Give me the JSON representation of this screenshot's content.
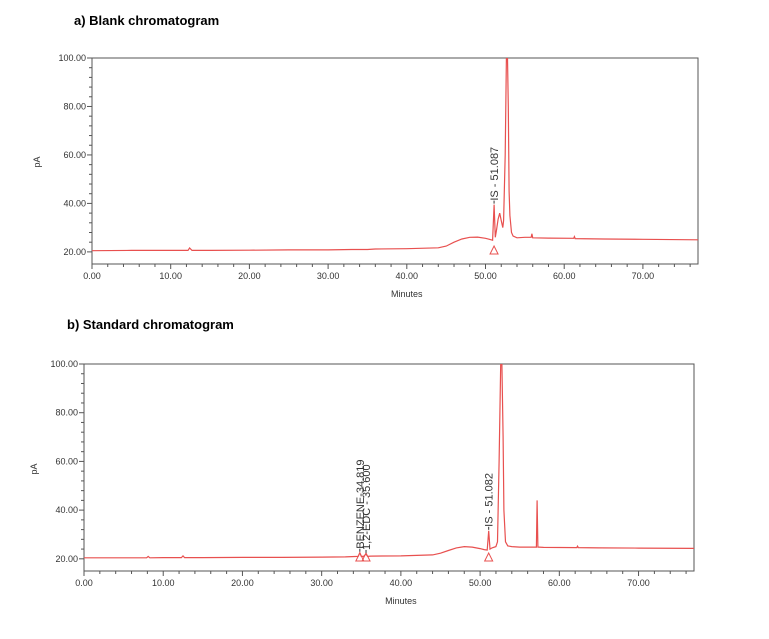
{
  "chart_data": [
    {
      "type": "line",
      "panel_title": "a) Blank chromatogram",
      "xlabel": "Minutes",
      "ylabel": "pA",
      "xlim": [
        0,
        77
      ],
      "ylim": [
        15,
        100
      ],
      "x_ticks": [
        "0.00",
        "10.00",
        "20.00",
        "30.00",
        "40.00",
        "50.00",
        "60.00",
        "70.00"
      ],
      "y_ticks": [
        "20.00",
        "40.00",
        "60.00",
        "80.00",
        "100.00"
      ],
      "color": "#e8504f",
      "series": [
        {
          "x": [
            0,
            5,
            10,
            12.2,
            12.4,
            12.7,
            15,
            20,
            25,
            30,
            33,
            35,
            36,
            40,
            44,
            45,
            46,
            47,
            48,
            49,
            50,
            50.5,
            50.9,
            51.087,
            51.25,
            51.4,
            51.6,
            51.8,
            52,
            52.2,
            52.3,
            52.5,
            52.65,
            52.8,
            52.9,
            53.0,
            53.1,
            53.3,
            53.5,
            54,
            55,
            55.8,
            55.9,
            56,
            58,
            61.2,
            61.3,
            61.4,
            65,
            70,
            77
          ],
          "y": [
            20.5,
            20.6,
            20.6,
            20.6,
            21.6,
            20.6,
            20.6,
            20.7,
            20.8,
            20.8,
            21,
            21,
            21.2,
            21.3,
            21.7,
            22.4,
            24,
            25.3,
            26,
            26.1,
            25.6,
            25.2,
            24.8,
            39.5,
            26,
            29,
            33.5,
            36,
            33,
            30,
            33,
            60,
            100,
            100,
            80,
            45,
            35,
            28,
            26.5,
            25.8,
            26,
            26,
            27.5,
            25.8,
            25.7,
            25.6,
            26.3,
            25.5,
            25.3,
            25.2,
            25
          ]
        }
      ],
      "annotations": [
        {
          "label": "IS - 51.087",
          "x": 51.087,
          "y": 39.5
        }
      ]
    },
    {
      "type": "line",
      "panel_title": "b) Standard chromatogram",
      "xlabel": "Minutes",
      "ylabel": "pA",
      "xlim": [
        0,
        77
      ],
      "ylim": [
        15,
        100
      ],
      "x_ticks": [
        "0.00",
        "10.00",
        "20.00",
        "30.00",
        "40.00",
        "50.00",
        "60.00",
        "70.00"
      ],
      "y_ticks": [
        "20.00",
        "40.00",
        "60.00",
        "80.00",
        "100.00"
      ],
      "color": "#e8504f",
      "series": [
        {
          "x": [
            0,
            5,
            7.9,
            8.1,
            8.3,
            10,
            12.3,
            12.5,
            12.7,
            15,
            20,
            25,
            30,
            33,
            34.6,
            34.819,
            35.0,
            35.3,
            35.6,
            35.8,
            36.2,
            40,
            44,
            45,
            46,
            47,
            48,
            49,
            50,
            50.5,
            50.9,
            51.082,
            51.25,
            51.5,
            52,
            52.2,
            52.4,
            52.6,
            52.75,
            52.9,
            53.0,
            53.2,
            53.5,
            54,
            55,
            57.1,
            57.2,
            57.3,
            57.4,
            58,
            62.2,
            62.3,
            62.4,
            65,
            70,
            77
          ],
          "y": [
            20.4,
            20.4,
            20.4,
            21,
            20.4,
            20.5,
            20.5,
            21.2,
            20.5,
            20.5,
            20.6,
            20.6,
            20.7,
            20.8,
            21,
            22.5,
            21,
            21,
            22,
            21,
            21.1,
            21.2,
            21.6,
            22.3,
            23.4,
            24.5,
            25,
            24.8,
            24.2,
            23.8,
            23.6,
            31.5,
            24,
            24.5,
            25,
            27,
            60,
            100,
            100,
            70,
            40,
            27,
            25.3,
            25,
            24.8,
            24.8,
            44,
            24.8,
            24.8,
            24.7,
            24.6,
            25.2,
            24.6,
            24.5,
            24.4,
            24.3
          ]
        }
      ],
      "annotations": [
        {
          "label": "BENZENE-34.819",
          "x": 34.819,
          "y": 22.5
        },
        {
          "label": "1,2-EDC - 35.600",
          "x": 35.6,
          "y": 22
        },
        {
          "label": "IS - 51.082",
          "x": 51.082,
          "y": 31.5
        }
      ]
    }
  ]
}
